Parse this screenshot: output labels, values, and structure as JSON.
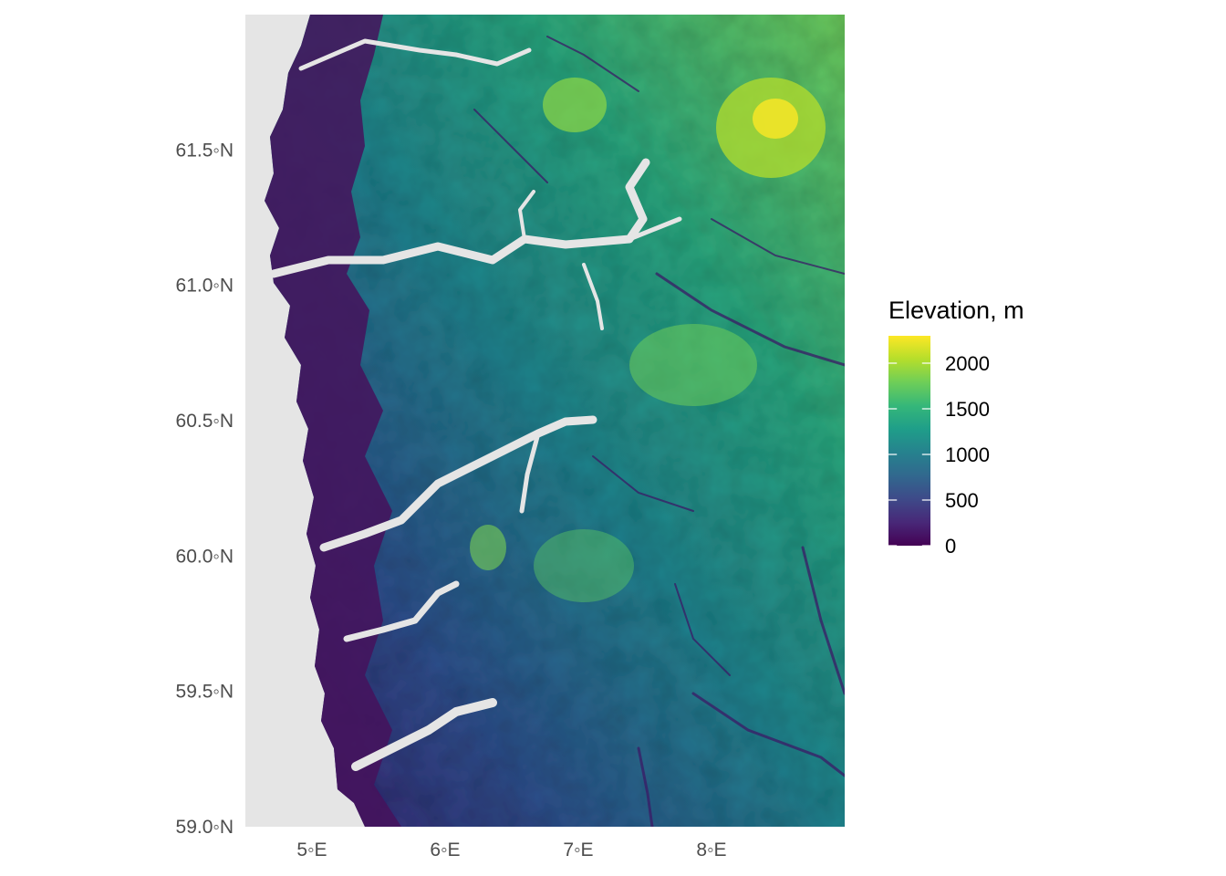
{
  "map": {
    "lon_range": [
      4.5,
      9.0
    ],
    "lat_range": [
      59.0,
      62.0
    ],
    "x_ticks": [
      {
        "value": 5,
        "label": "5◦E"
      },
      {
        "value": 6,
        "label": "6◦E"
      },
      {
        "value": 7,
        "label": "7◦E"
      },
      {
        "value": 8,
        "label": "8◦E"
      }
    ],
    "y_ticks": [
      {
        "value": 59.0,
        "label": "59.0◦N"
      },
      {
        "value": 59.5,
        "label": "59.5◦N"
      },
      {
        "value": 60.0,
        "label": "60.0◦N"
      },
      {
        "value": 60.5,
        "label": "60.5◦N"
      },
      {
        "value": 61.0,
        "label": "61.0◦N"
      },
      {
        "value": 61.5,
        "label": "61.5◦N"
      }
    ],
    "sea_color": "#e5e5e5",
    "background_color": "#ffffff",
    "colormap": "viridis"
  },
  "legend": {
    "title": "Elevation, m",
    "min": 0,
    "max": 2300,
    "breaks": [
      {
        "value": 0,
        "label": "0"
      },
      {
        "value": 500,
        "label": "500"
      },
      {
        "value": 1000,
        "label": "1000"
      },
      {
        "value": 1500,
        "label": "1500"
      },
      {
        "value": 2000,
        "label": "2000"
      }
    ],
    "colors": [
      "#440154",
      "#482878",
      "#3e4a89",
      "#31688e",
      "#26828e",
      "#1f9e89",
      "#35b779",
      "#6ece58",
      "#b5de2b",
      "#fde725"
    ]
  }
}
